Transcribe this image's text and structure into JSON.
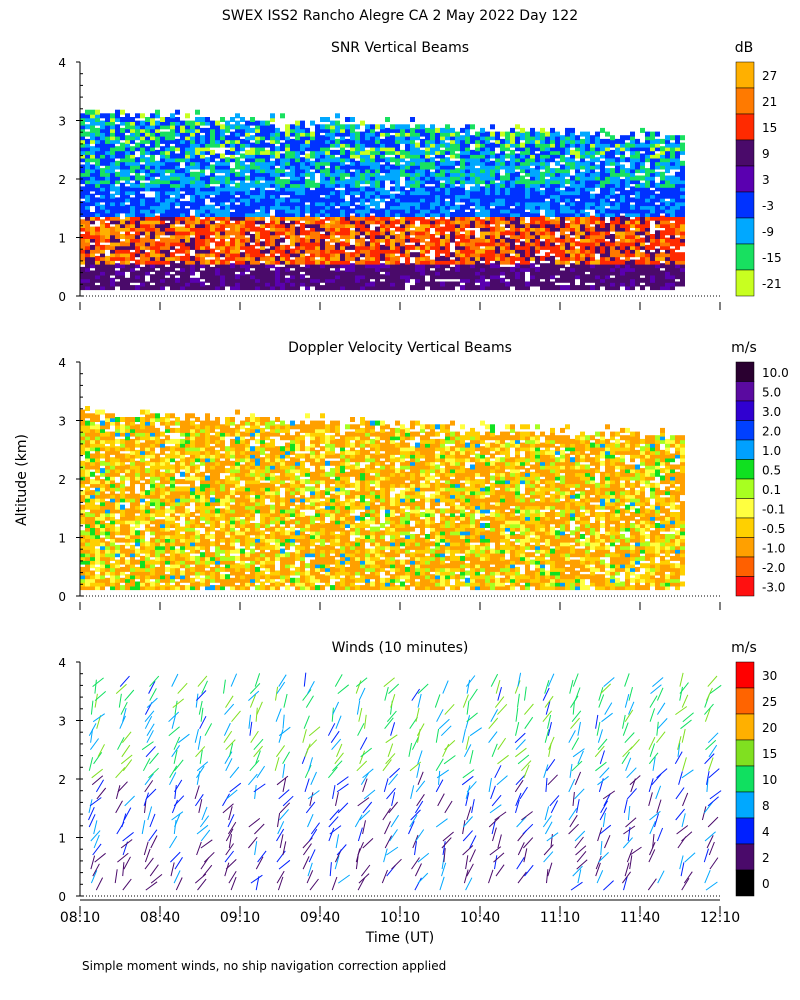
{
  "page": {
    "title": "SWEX ISS2 Rancho Alegre CA   2 May 2022 Day 122",
    "footnote": "Simple moment winds, no ship navigation correction applied",
    "ylabel": "Altitude (km)",
    "xlabel": "Time (UT)"
  },
  "chart_data": [
    {
      "type": "heatmap",
      "title": "SNR Vertical Beams",
      "unit": "dB",
      "x_ticks": [
        "08:10",
        "08:40",
        "09:10",
        "09:40",
        "10:10",
        "10:40",
        "11:10",
        "11:40",
        "12:10"
      ],
      "x_range_minutes_after_0810": [
        0,
        240
      ],
      "y_ticks": [
        0,
        1,
        2,
        3,
        4
      ],
      "ylim": [
        0,
        4
      ],
      "colorbar": {
        "labels": [
          "27",
          "21",
          "15",
          "9",
          "3",
          "-3",
          "-9",
          "-15",
          "-21"
        ],
        "colors": [
          "#ffb000",
          "#ff7a00",
          "#ff2a00",
          "#4a0a6a",
          "#5a00b0",
          "#0032ff",
          "#00a8ff",
          "#18e060",
          "#c8ff20"
        ]
      },
      "layers": [
        {
          "altitude_km": [
            0.1,
            0.5
          ],
          "dominant": "9"
        },
        {
          "altitude_km": [
            0.5,
            1.3
          ],
          "dominant": "15 to 27 (mixed)"
        },
        {
          "altitude_km": [
            1.3,
            2.3
          ],
          "dominant": "-3 to -9"
        },
        {
          "altitude_km": [
            2.3,
            3.1
          ],
          "dominant": "-3 to -15"
        }
      ]
    },
    {
      "type": "heatmap",
      "title": "Doppler Velocity Vertical Beams",
      "unit": "m/s",
      "x_ticks": [
        "08:10",
        "08:40",
        "09:10",
        "09:40",
        "10:10",
        "10:40",
        "11:10",
        "11:40",
        "12:10"
      ],
      "y_ticks": [
        0,
        1,
        2,
        3,
        4
      ],
      "ylim": [
        0,
        4
      ],
      "colorbar": {
        "labels": [
          "10.0",
          "5.0",
          "3.0",
          "2.0",
          "1.0",
          "0.5",
          "0.1",
          "-0.1",
          "-0.5",
          "-1.0",
          "-2.0",
          "-3.0"
        ],
        "colors": [
          "#2a0030",
          "#5a0aa0",
          "#3000d0",
          "#0040ff",
          "#00a0ff",
          "#10e020",
          "#a8ff20",
          "#ffff40",
          "#ffd000",
          "#ffa000",
          "#ff6000",
          "#ff1010"
        ]
      },
      "layers": [
        {
          "altitude_km": [
            0.1,
            3.1
          ],
          "dominant": "-0.1 to -0.5"
        }
      ]
    },
    {
      "type": "wind-barbs",
      "title": "Winds (10 minutes)",
      "unit": "m/s",
      "x_ticks": [
        "08:10",
        "08:40",
        "09:10",
        "09:40",
        "10:10",
        "10:40",
        "11:10",
        "11:40",
        "12:10"
      ],
      "xlabel": "Time (UT)",
      "y_ticks": [
        0,
        1,
        2,
        3,
        4
      ],
      "ylim": [
        0,
        4
      ],
      "colorbar": {
        "labels": [
          "30",
          "25",
          "20",
          "15",
          "10",
          "8",
          "4",
          "2",
          "0"
        ],
        "colors": [
          "#ff0000",
          "#ff6400",
          "#ffb000",
          "#80e020",
          "#10e060",
          "#00a8ff",
          "#0020ff",
          "#4a0a6a",
          "#000000"
        ]
      },
      "profiles_every_minutes": 10,
      "altitude_range_km": [
        0.1,
        3.6
      ]
    }
  ],
  "colors": {
    "missing": "#ffffff",
    "axis": "#000000"
  }
}
